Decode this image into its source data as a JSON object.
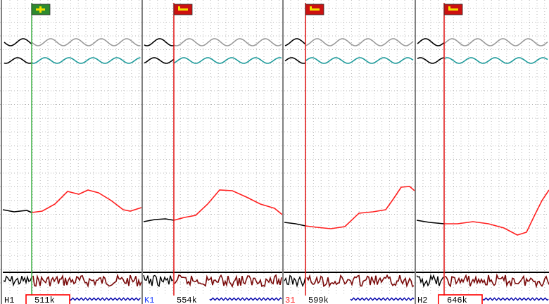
{
  "colors": {
    "grid": "#b8b8b8",
    "divider": "#808080",
    "trace_gray": "#9a9a9a",
    "trace_teal": "#1d9a9a",
    "trace_red": "#ff2020",
    "trace_darkred": "#7a0a0a",
    "trace_black": "#000000",
    "marker_green": "#3cb043",
    "marker_red": "#e01010",
    "flag_green_bg": "#2e8b2e",
    "flag_red_bg": "#cc1111",
    "flag_glyph": "#f2e200",
    "box_red": "#ff0000",
    "blue_wave": "#0000aa"
  },
  "panels": [
    {
      "flag_type": "start",
      "flag_icon": "green-start-flag-icon",
      "marker_color": "#3cb043",
      "label_prefix": "H1",
      "label_prefix_color": "#000000",
      "label_value": "511k",
      "value_boxed": true
    },
    {
      "flag_type": "stop",
      "flag_icon": "red-stop-flag-icon",
      "marker_color": "#e01010",
      "label_prefix": "K1",
      "label_prefix_color": "#1a3cff",
      "label_value": "554k",
      "value_boxed": false
    },
    {
      "flag_type": "stop",
      "flag_icon": "red-stop-flag-icon",
      "marker_color": "#e01010",
      "label_prefix": "31",
      "label_prefix_color": "#ff2020",
      "label_value": "599k",
      "value_boxed": false
    },
    {
      "flag_type": "stop",
      "flag_icon": "red-stop-flag-icon",
      "marker_color": "#e01010",
      "label_prefix": "H2",
      "label_prefix_color": "#000000",
      "label_value": "646k",
      "value_boxed": true
    }
  ]
}
